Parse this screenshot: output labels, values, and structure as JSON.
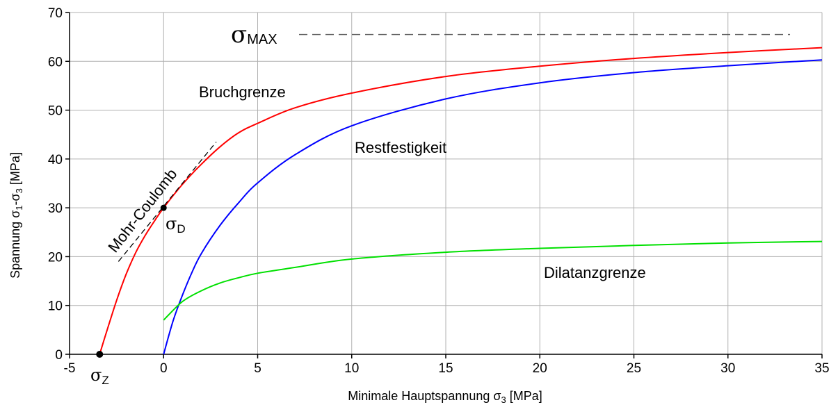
{
  "chart_data": {
    "type": "line",
    "title": "",
    "xlabel": "Minimale Hauptspannung σ3 [MPa]",
    "xlabel_main": "Minimale Hauptspannung σ",
    "xlabel_sub": "3",
    "xlabel_unit": " [MPa]",
    "ylabel_pre": "Spannung σ",
    "ylabel_sub1": "1",
    "ylabel_mid": "-σ",
    "ylabel_sub2": "3",
    "ylabel_unit": " [MPa]",
    "xlim": [
      -5,
      35
    ],
    "ylim": [
      0,
      70
    ],
    "x_ticks": [
      -5,
      0,
      5,
      10,
      15,
      20,
      25,
      30,
      35
    ],
    "y_ticks": [
      0,
      10,
      20,
      30,
      40,
      50,
      60,
      70
    ],
    "grid": true,
    "series": [
      {
        "name": "Bruchgrenze",
        "color": "#ff0000",
        "x": [
          -3.4,
          -3,
          -2.5,
          -2,
          -1.5,
          -1,
          -0.5,
          0,
          1,
          2,
          3,
          4,
          5,
          7,
          10,
          15,
          20,
          25,
          30,
          35
        ],
        "y": [
          0,
          5,
          11,
          16.3,
          20.7,
          24.2,
          27.2,
          30,
          34.8,
          38.9,
          42.5,
          45.4,
          47.3,
          50.5,
          53.5,
          56.9,
          59.0,
          60.6,
          61.8,
          62.8
        ]
      },
      {
        "name": "Restfestigkeit",
        "color": "#0000ff",
        "x": [
          0,
          0.5,
          1,
          1.5,
          2,
          3,
          4,
          5,
          7,
          10,
          15,
          20,
          25,
          30,
          35
        ],
        "y": [
          0,
          6.8,
          12.1,
          16.7,
          20.6,
          26.4,
          31.1,
          35.1,
          40.9,
          46.8,
          52.3,
          55.6,
          57.7,
          59.1,
          60.3
        ]
      },
      {
        "name": "Dilatanzgrenze",
        "color": "#00e000",
        "x": [
          0,
          1,
          2,
          3,
          4,
          5,
          7,
          10,
          15,
          20,
          25,
          30,
          35
        ],
        "y": [
          7,
          10.8,
          13,
          14.6,
          15.7,
          16.6,
          17.8,
          19.5,
          20.9,
          21.7,
          22.3,
          22.8,
          23.1
        ]
      }
    ],
    "mohr_coulomb": {
      "label": "Mohr-Coulomb",
      "x": [
        -2.4,
        2.8
      ],
      "y": [
        19,
        43.5
      ]
    },
    "sigma_max": {
      "label_sym": "σ",
      "label_sub": "MAX",
      "y": 65.5,
      "x": [
        7.2,
        33.3
      ]
    },
    "points": [
      {
        "label_sym": "σ",
        "label_sub": "Z",
        "x": -3.4,
        "y": 0
      },
      {
        "label_sym": "σ",
        "label_sub": "D",
        "x": 0,
        "y": 30
      }
    ],
    "annotations": {
      "bruch": "Bruchgrenze",
      "rest": "Restfestigkeit",
      "dilat": "Dilatanzgrenze"
    }
  }
}
